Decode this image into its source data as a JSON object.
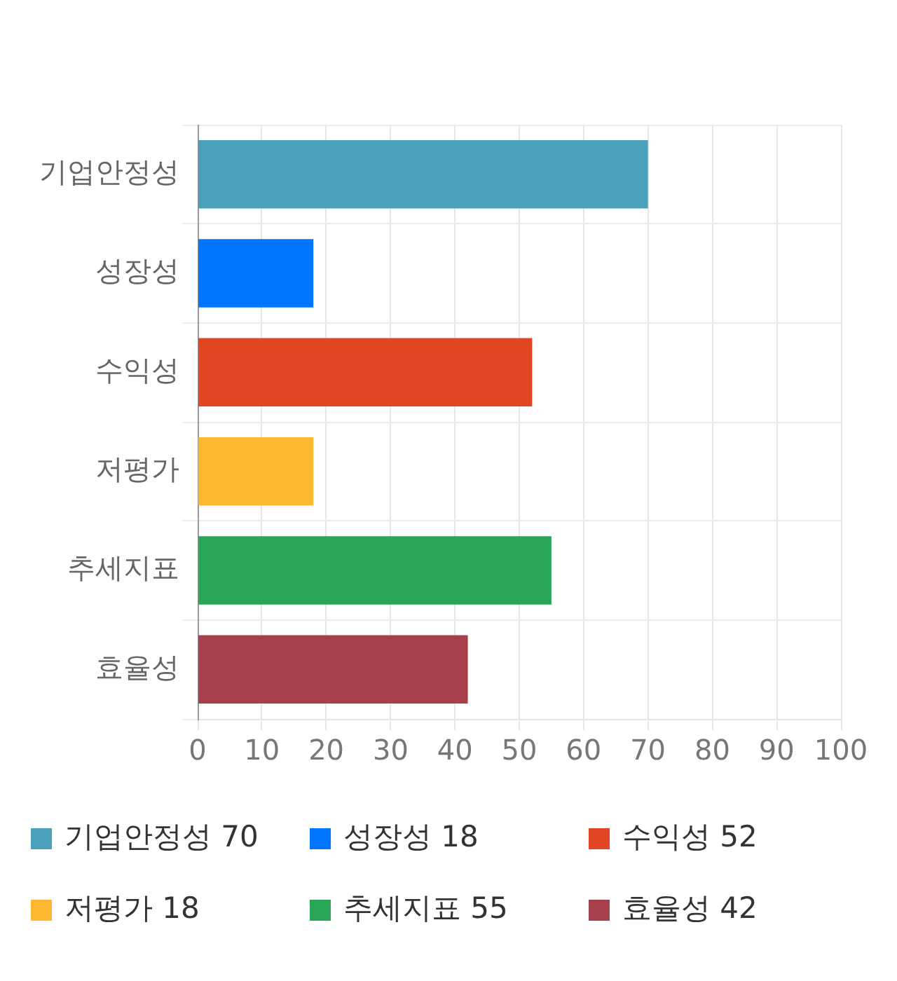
{
  "chart_data": {
    "type": "bar",
    "orientation": "horizontal",
    "categories": [
      "기업안정성",
      "성장성",
      "수익성",
      "저평가",
      "추세지표",
      "효율성"
    ],
    "series": [
      {
        "name": "기업안정성 70",
        "color": "#4aa1b9",
        "values": [
          70,
          null,
          null,
          null,
          null,
          null
        ]
      },
      {
        "name": "성장성 18",
        "color": "#0076ff",
        "values": [
          null,
          18,
          null,
          null,
          null,
          null
        ]
      },
      {
        "name": "수익성 52",
        "color": "#e14524",
        "values": [
          null,
          null,
          52,
          null,
          null,
          null
        ]
      },
      {
        "name": "저평가 18",
        "color": "#fdb733",
        "values": [
          null,
          null,
          null,
          18,
          null,
          null
        ]
      },
      {
        "name": "추세지표 55",
        "color": "#29a655",
        "values": [
          null,
          null,
          null,
          null,
          55,
          null
        ]
      },
      {
        "name": "효율성 42",
        "color": "#a6404d",
        "values": [
          null,
          null,
          null,
          null,
          null,
          42
        ]
      }
    ],
    "xlim": [
      0,
      100
    ],
    "xticks": [
      0,
      10,
      20,
      30,
      40,
      50,
      60,
      70,
      80,
      90,
      100
    ],
    "grid": true,
    "legend": "bottom"
  }
}
